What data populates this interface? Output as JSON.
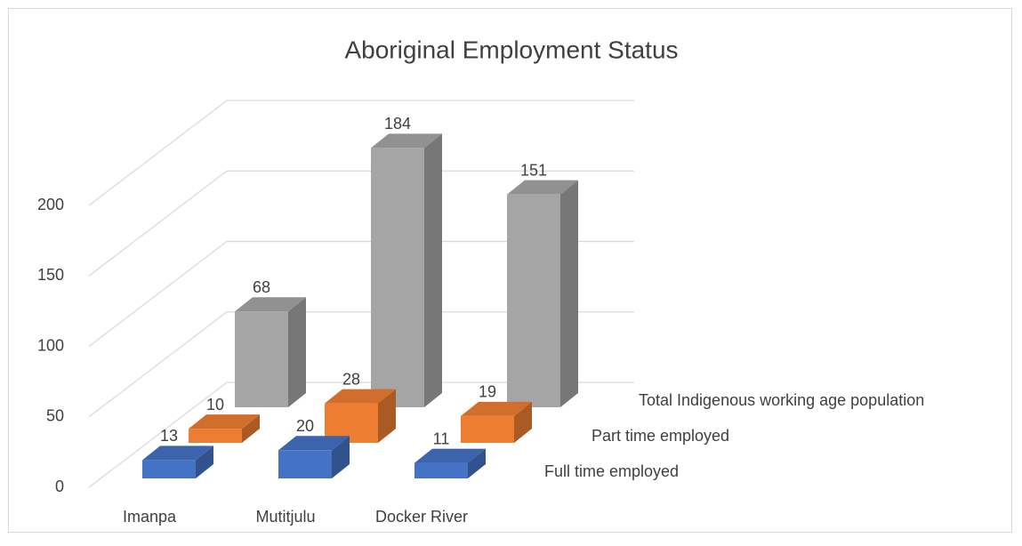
{
  "chart_data": {
    "type": "bar3d",
    "title": "Aboriginal Employment Status",
    "categories": [
      "Imanpa",
      "Mutitjulu",
      "Docker River"
    ],
    "series": [
      {
        "name": "Full time employed",
        "color": "#4472c4",
        "values": [
          13,
          20,
          11
        ]
      },
      {
        "name": "Part time employed",
        "color": "#ed7d31",
        "values": [
          10,
          28,
          19
        ]
      },
      {
        "name": "Total Indigenous working age population",
        "color": "#a5a5a5",
        "values": [
          68,
          184,
          151
        ]
      }
    ],
    "ylim": [
      0,
      200
    ],
    "yticks": [
      0,
      50,
      100,
      150,
      200
    ],
    "grid": true
  }
}
